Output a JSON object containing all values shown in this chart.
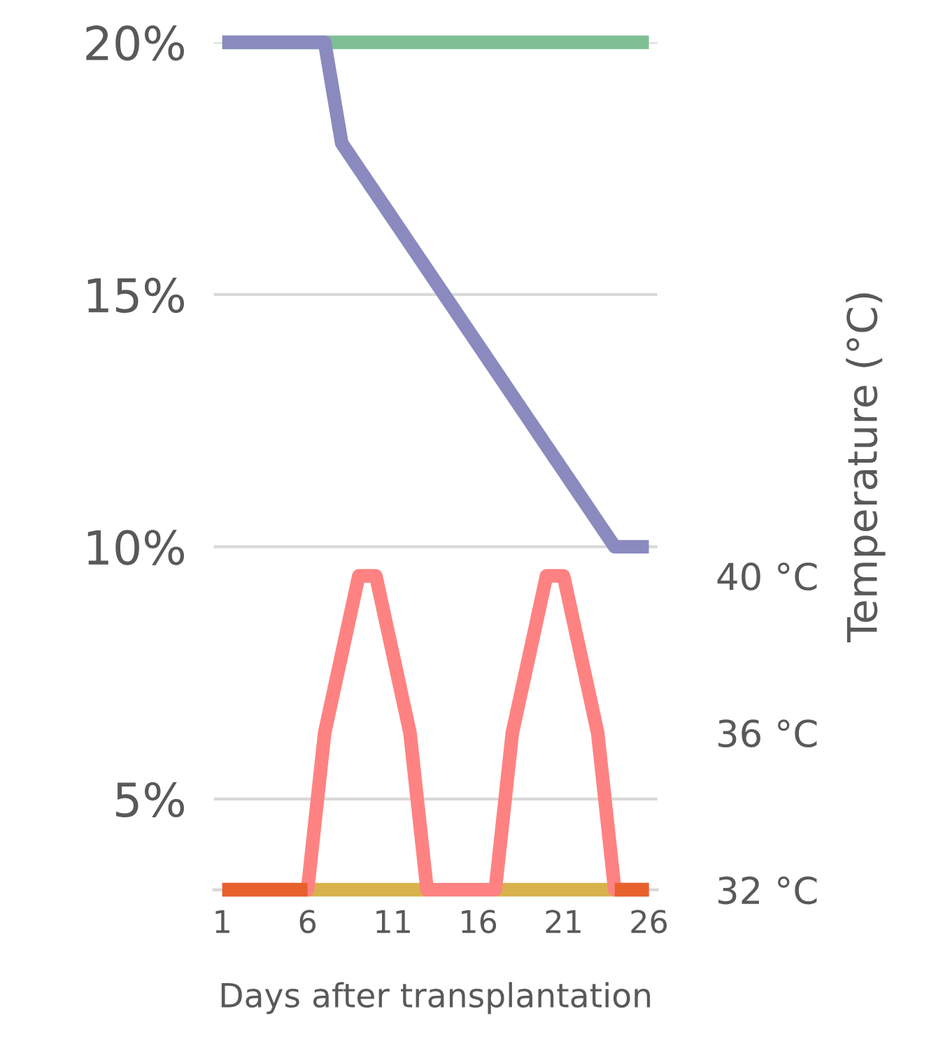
{
  "chart_data": {
    "type": "line",
    "xlabel": "Days after transplantation",
    "y2label": "Temperature (°C)",
    "x": [
      1,
      2,
      3,
      4,
      5,
      6,
      7,
      8,
      9,
      10,
      11,
      12,
      13,
      14,
      15,
      16,
      17,
      18,
      19,
      20,
      21,
      22,
      23,
      24,
      25,
      26
    ],
    "series": [
      {
        "color": "#7fbf95",
        "values": [
          20,
          20,
          20,
          20,
          20,
          20,
          20,
          20,
          20,
          20,
          20,
          20,
          20,
          20,
          20,
          20,
          20,
          20,
          20,
          20,
          20,
          20,
          20,
          20,
          20,
          20
        ]
      },
      {
        "color": "#8a8abf",
        "values": [
          20,
          20,
          20,
          20,
          20,
          20,
          20,
          18,
          17.5,
          17,
          16.5,
          16,
          15.5,
          15,
          14.5,
          14,
          13.5,
          13,
          12.5,
          12,
          11.5,
          11,
          10.5,
          10,
          10,
          10
        ]
      },
      {
        "color": "#d8b24c",
        "axis": "y2",
        "values": [
          null,
          null,
          null,
          null,
          null,
          32,
          32,
          32,
          32,
          32,
          32,
          32,
          32,
          null,
          null,
          null,
          32,
          32,
          32,
          32,
          32,
          32,
          32,
          32,
          null,
          null
        ]
      },
      {
        "color": "#ff8282",
        "axis": "y2",
        "values": [
          32,
          32,
          32,
          32,
          32,
          32,
          36,
          38,
          40,
          40,
          38,
          36,
          32,
          32,
          32,
          32,
          32,
          36,
          38,
          40,
          40,
          38,
          36,
          32,
          32,
          32
        ]
      },
      {
        "color": "#e8602c",
        "axis": "y2",
        "values": [
          32,
          32,
          32,
          32,
          32,
          32,
          null,
          null,
          null,
          null,
          null,
          null,
          null,
          null,
          null,
          null,
          null,
          null,
          null,
          null,
          null,
          null,
          null,
          32,
          32,
          32
        ]
      }
    ],
    "xlim": [
      0.5,
      26.5
    ],
    "xticks": [
      1,
      6,
      11,
      16,
      21,
      26
    ],
    "ylim": [
      3.2,
      20
    ],
    "yticks": [
      {
        "value": 5,
        "label": "5%"
      },
      {
        "value": 10,
        "label": "10%"
      },
      {
        "value": 15,
        "label": "15%"
      },
      {
        "value": 20,
        "label": "20%"
      }
    ],
    "y2lim": [
      32,
      53.6
    ],
    "y2ticks": [
      {
        "value": 32,
        "label": "32 °C"
      },
      {
        "value": 36,
        "label": "36 °C"
      },
      {
        "value": 40,
        "label": "40 °C"
      }
    ],
    "grid": "y",
    "line_style": "solid",
    "marker": "none",
    "legend": false
  }
}
